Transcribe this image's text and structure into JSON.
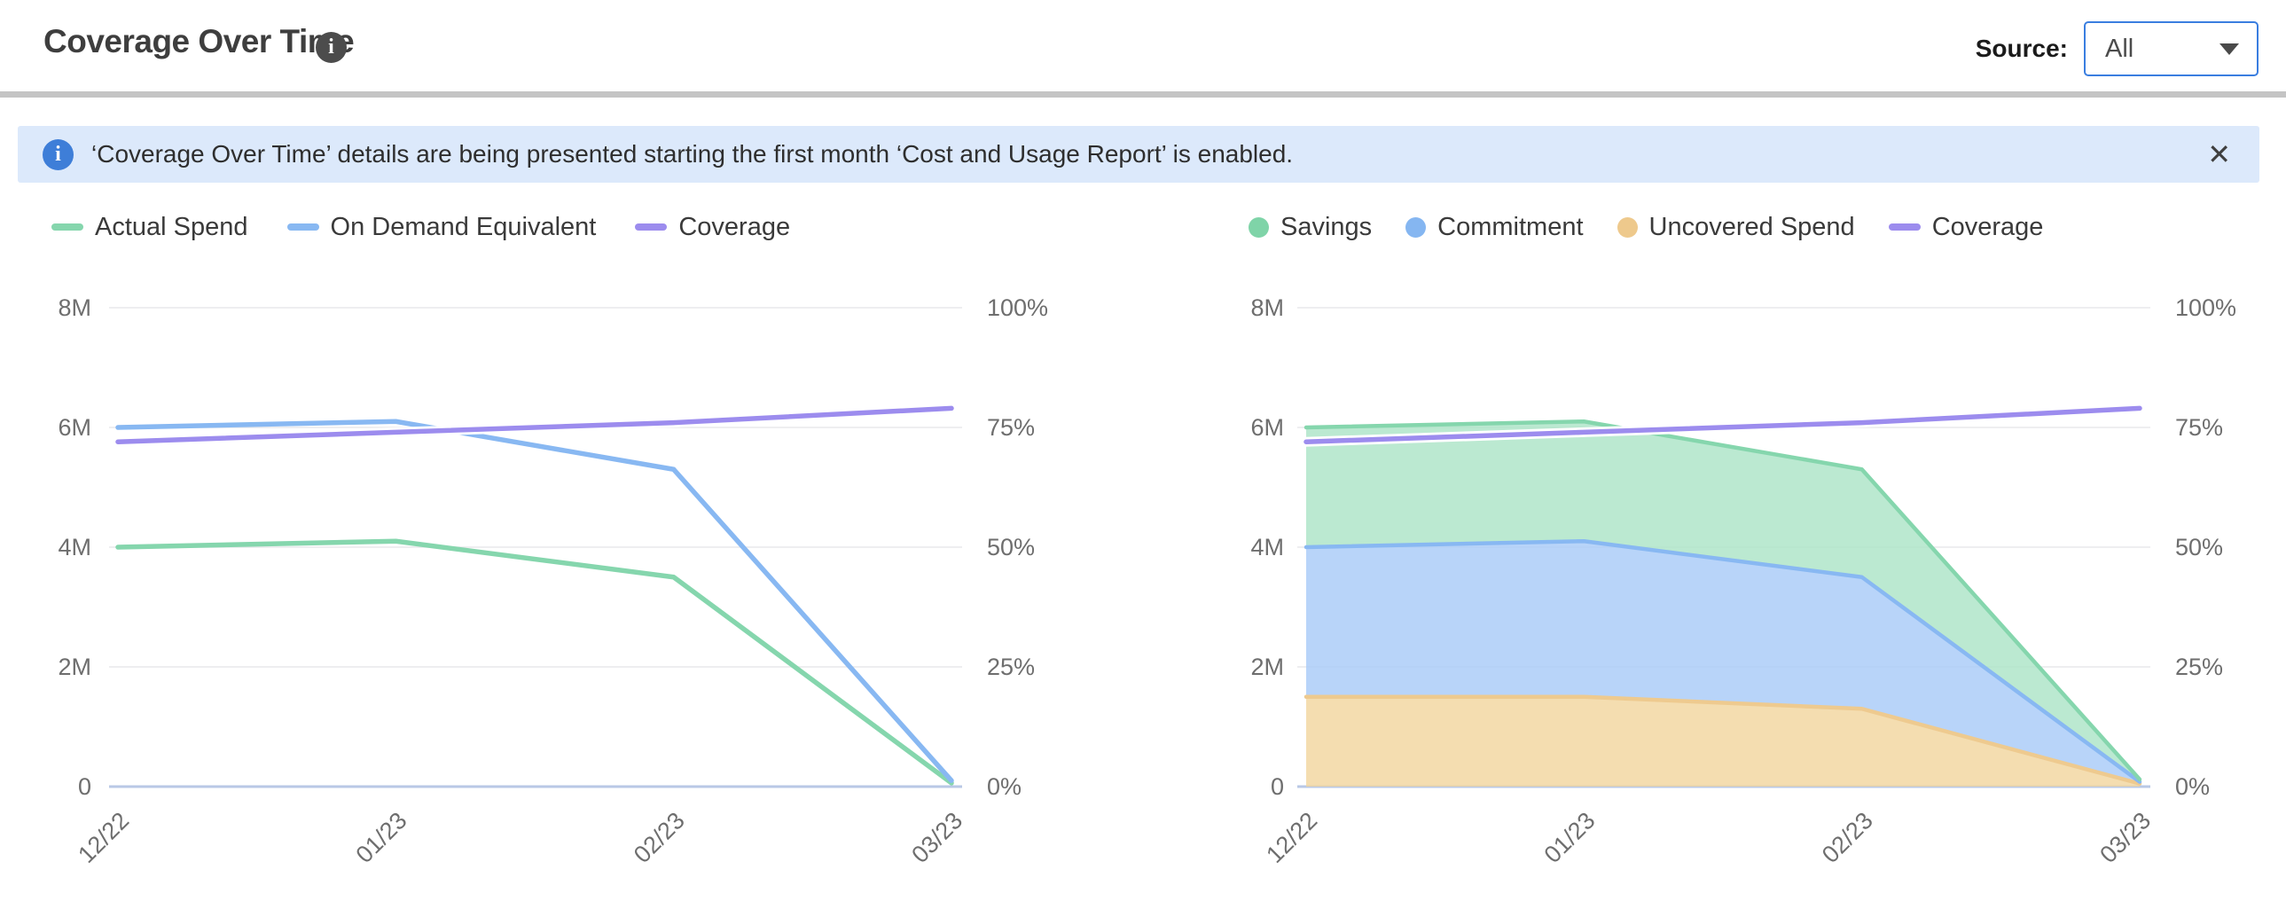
{
  "header": {
    "title": "Coverage Over Time",
    "source_label": "Source:",
    "source_value": "All"
  },
  "icons": {
    "info": "i",
    "close": "✕",
    "caret": "caret-down-icon"
  },
  "banner": {
    "text": "‘Coverage Over Time’ details are being presented starting the first month ‘Cost and Usage Report’ is enabled."
  },
  "colors": {
    "accent_blue": "#3a7ee0",
    "banner_bg": "#dce9fb",
    "banner_icon": "#3e7ed8",
    "grid": "#e8e8eb",
    "baseline": "#b9c8e6",
    "axis_text": "#6e6e6e",
    "green": "#7fd4a8",
    "blue": "#85b6f1",
    "purple": "#9c8cee",
    "orange": "#eec98c"
  },
  "chart_data": [
    {
      "type": "line",
      "name": "coverage-spend-line-chart",
      "categories": [
        "12/22",
        "01/23",
        "02/23",
        "03/23"
      ],
      "series": [
        {
          "name": "Actual Spend",
          "axis": "left",
          "swatch": "dash",
          "color": "#85d6ad",
          "values": [
            4.0,
            4.1,
            3.5,
            0.06
          ]
        },
        {
          "name": "On Demand Equivalent",
          "axis": "left",
          "swatch": "dash",
          "color": "#88b8f2",
          "values": [
            6.0,
            6.1,
            5.3,
            0.1
          ]
        },
        {
          "name": "Coverage",
          "axis": "right",
          "swatch": "dash",
          "color": "#9c8cee",
          "halo": true,
          "values": [
            72,
            74,
            76,
            79
          ]
        }
      ],
      "left_axis": {
        "max": 8,
        "unit": "M",
        "ticks": [
          {
            "v": 0,
            "label": "0"
          },
          {
            "v": 2,
            "label": "2M"
          },
          {
            "v": 4,
            "label": "4M"
          },
          {
            "v": 6,
            "label": "6M"
          },
          {
            "v": 8,
            "label": "8M"
          }
        ]
      },
      "right_axis": {
        "max": 100,
        "unit": "%",
        "ticks": [
          {
            "v": 0,
            "label": "0%"
          },
          {
            "v": 25,
            "label": "25%"
          },
          {
            "v": 50,
            "label": "50%"
          },
          {
            "v": 75,
            "label": "75%"
          },
          {
            "v": 100,
            "label": "100%"
          }
        ]
      },
      "legend_order": [
        "Actual Spend",
        "On Demand Equivalent",
        "Coverage"
      ],
      "legend_position": "top-left",
      "grid": true
    },
    {
      "type": "stacked-area",
      "name": "savings-commitment-uncovered-area-chart",
      "categories": [
        "12/22",
        "01/23",
        "02/23",
        "03/23"
      ],
      "series": [
        {
          "name": "Uncovered Spend",
          "swatch": "circle",
          "color": "#eec98c",
          "fill": "#f1d49c",
          "line": "#eeca8f",
          "values": [
            1.5,
            1.5,
            1.3,
            0.05
          ]
        },
        {
          "name": "Commitment",
          "swatch": "circle",
          "color": "#85b6f1",
          "fill": "#a6c9f7",
          "line": "#88b8f2",
          "values": [
            2.5,
            2.6,
            2.2,
            0.03
          ]
        },
        {
          "name": "Savings",
          "swatch": "circle",
          "color": "#7fd4a8",
          "fill": "#aae3c6",
          "line": "#85d6ad",
          "values": [
            2.0,
            2.0,
            1.8,
            0.04
          ]
        }
      ],
      "overlay_line": {
        "name": "Coverage",
        "axis": "right",
        "swatch": "dash",
        "color": "#9c8cee",
        "halo": true,
        "values": [
          72,
          74,
          76,
          79
        ]
      },
      "left_axis": {
        "max": 8,
        "unit": "M",
        "ticks": [
          {
            "v": 0,
            "label": "0"
          },
          {
            "v": 2,
            "label": "2M"
          },
          {
            "v": 4,
            "label": "4M"
          },
          {
            "v": 6,
            "label": "6M"
          },
          {
            "v": 8,
            "label": "8M"
          }
        ]
      },
      "right_axis": {
        "max": 100,
        "unit": "%",
        "ticks": [
          {
            "v": 0,
            "label": "0%"
          },
          {
            "v": 25,
            "label": "25%"
          },
          {
            "v": 50,
            "label": "50%"
          },
          {
            "v": 75,
            "label": "75%"
          },
          {
            "v": 100,
            "label": "100%"
          }
        ]
      },
      "legend_order": [
        "Savings",
        "Commitment",
        "Uncovered Spend",
        "Coverage"
      ],
      "legend_position": "top-left",
      "grid": true
    }
  ]
}
